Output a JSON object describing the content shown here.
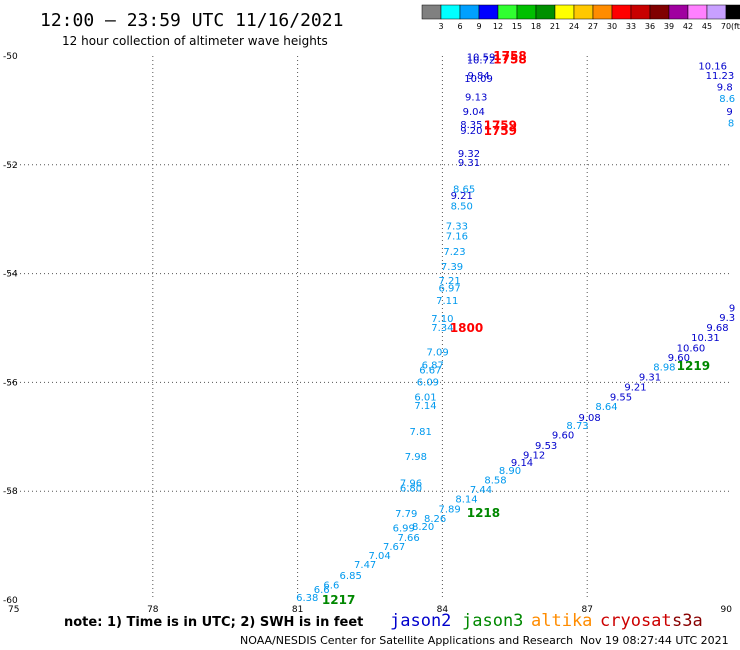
{
  "header": {
    "title": "12:00 – 23:59 UTC 11/16/2021",
    "subtitle": "12 hour collection of altimeter wave heights"
  },
  "color_scale": {
    "labels": [
      "3",
      "6",
      "9",
      "12",
      "15",
      "18",
      "21",
      "24",
      "27",
      "30",
      "33",
      "36",
      "39",
      "42",
      "45",
      "70"
    ],
    "unit": "(ft)",
    "colors": [
      "#808080",
      "#00ffff",
      "#00a0ff",
      "#0000ff",
      "#30ff30",
      "#00c000",
      "#009000",
      "#ffff00",
      "#ffc800",
      "#ff8c00",
      "#ff0000",
      "#c80000",
      "#800000",
      "#a000a0",
      "#ff80ff",
      "#c8a0ff",
      "#000000"
    ]
  },
  "axes": {
    "lon_ticks": [
      "75",
      "78",
      "81",
      "84",
      "87",
      "90"
    ],
    "lat_ticks": [
      "-50",
      "-52",
      "-54",
      "-56",
      "-58",
      "-60"
    ]
  },
  "chart_data": {
    "type": "map",
    "x_range": [
      75,
      90
    ],
    "y_range": [
      -60,
      -50
    ],
    "wave_heights": [
      {
        "lon": 84.8,
        "lat": -50.03,
        "v": "10.59",
        "c": "#0000cc"
      },
      {
        "lon": 84.8,
        "lat": -50.08,
        "v": "10.72",
        "c": "#0000cc"
      },
      {
        "lon": 84.75,
        "lat": -50.37,
        "v": "9.84",
        "c": "#0000cc"
      },
      {
        "lon": 84.75,
        "lat": -50.42,
        "v": "10.09",
        "c": "#0000cc"
      },
      {
        "lon": 84.7,
        "lat": -50.76,
        "v": "9.13",
        "c": "#0000cc"
      },
      {
        "lon": 84.65,
        "lat": -51.03,
        "v": "9.04",
        "c": "#0000cc"
      },
      {
        "lon": 84.6,
        "lat": -51.27,
        "v": "8.35",
        "c": "#0000cc"
      },
      {
        "lon": 84.6,
        "lat": -51.38,
        "v": "9.20",
        "c": "#0000cc"
      },
      {
        "lon": 84.55,
        "lat": -51.8,
        "v": "9.32",
        "c": "#0000cc"
      },
      {
        "lon": 84.55,
        "lat": -51.97,
        "v": "9.31",
        "c": "#0000cc"
      },
      {
        "lon": 84.45,
        "lat": -52.45,
        "v": "8.65",
        "c": "#0099ee"
      },
      {
        "lon": 84.4,
        "lat": -52.57,
        "v": "9.21",
        "c": "#0000cc"
      },
      {
        "lon": 84.4,
        "lat": -52.77,
        "v": "8.50",
        "c": "#0099ee"
      },
      {
        "lon": 84.3,
        "lat": -53.13,
        "v": "7.33",
        "c": "#0099ee"
      },
      {
        "lon": 84.3,
        "lat": -53.32,
        "v": "7.16",
        "c": "#0099ee"
      },
      {
        "lon": 84.25,
        "lat": -53.6,
        "v": "7.23",
        "c": "#0099ee"
      },
      {
        "lon": 84.2,
        "lat": -53.88,
        "v": "7.39",
        "c": "#0099ee"
      },
      {
        "lon": 84.15,
        "lat": -54.14,
        "v": "7.21",
        "c": "#0099ee"
      },
      {
        "lon": 84.15,
        "lat": -54.27,
        "v": "6.97",
        "c": "#0099ee"
      },
      {
        "lon": 84.1,
        "lat": -54.5,
        "v": "7.11",
        "c": "#0099ee"
      },
      {
        "lon": 84.0,
        "lat": -54.83,
        "v": "7.10",
        "c": "#0099ee"
      },
      {
        "lon": 84.0,
        "lat": -55.0,
        "v": "7.34",
        "c": "#0099ee"
      },
      {
        "lon": 83.9,
        "lat": -55.45,
        "v": "7.09",
        "c": "#0099ee"
      },
      {
        "lon": 83.8,
        "lat": -55.69,
        "v": "6.87",
        "c": "#0099ee"
      },
      {
        "lon": 83.75,
        "lat": -55.78,
        "v": "6.67",
        "c": "#0099ee"
      },
      {
        "lon": 83.7,
        "lat": -56.0,
        "v": "6.09",
        "c": "#0099ee"
      },
      {
        "lon": 83.65,
        "lat": -56.28,
        "v": "6.01",
        "c": "#0099ee"
      },
      {
        "lon": 83.65,
        "lat": -56.43,
        "v": "7.14",
        "c": "#0099ee"
      },
      {
        "lon": 83.55,
        "lat": -56.91,
        "v": "7.81",
        "c": "#0099ee"
      },
      {
        "lon": 83.45,
        "lat": -57.37,
        "v": "7.98",
        "c": "#0099ee"
      },
      {
        "lon": 83.35,
        "lat": -57.86,
        "v": "7.96",
        "c": "#0099ee"
      },
      {
        "lon": 83.35,
        "lat": -57.95,
        "v": "6.80",
        "c": "#0099ee"
      },
      {
        "lon": 83.25,
        "lat": -58.42,
        "v": "7.79",
        "c": "#0099ee"
      },
      {
        "lon": 83.2,
        "lat": -58.69,
        "v": "6.99",
        "c": "#0099ee"
      },
      {
        "lon": 81.2,
        "lat": -59.96,
        "v": "6.38",
        "c": "#0099ee"
      },
      {
        "lon": 81.5,
        "lat": -59.82,
        "v": "6.6",
        "c": "#0099ee"
      },
      {
        "lon": 81.7,
        "lat": -59.73,
        "v": "6.6",
        "c": "#0099ee"
      },
      {
        "lon": 82.1,
        "lat": -59.56,
        "v": "6.85",
        "c": "#0099ee"
      },
      {
        "lon": 82.4,
        "lat": -59.36,
        "v": "7.47",
        "c": "#0099ee"
      },
      {
        "lon": 82.7,
        "lat": -59.19,
        "v": "7.04",
        "c": "#0099ee"
      },
      {
        "lon": 83.0,
        "lat": -59.03,
        "v": "7.67",
        "c": "#0099ee"
      },
      {
        "lon": 83.3,
        "lat": -58.86,
        "v": "7.66",
        "c": "#0099ee"
      },
      {
        "lon": 83.6,
        "lat": -58.66,
        "v": "8.20",
        "c": "#0099ee"
      },
      {
        "lon": 83.85,
        "lat": -58.51,
        "v": "8.26",
        "c": "#0099ee"
      },
      {
        "lon": 84.15,
        "lat": -58.34,
        "v": "7.89",
        "c": "#0099ee"
      },
      {
        "lon": 84.5,
        "lat": -58.15,
        "v": "8.14",
        "c": "#0099ee"
      },
      {
        "lon": 84.8,
        "lat": -57.98,
        "v": "7.44",
        "c": "#0099ee"
      },
      {
        "lon": 85.1,
        "lat": -57.8,
        "v": "8.58",
        "c": "#0099ee"
      },
      {
        "lon": 85.4,
        "lat": -57.63,
        "v": "8.90",
        "c": "#0099ee"
      },
      {
        "lon": 85.65,
        "lat": -57.48,
        "v": "9.14",
        "c": "#0000cc"
      },
      {
        "lon": 85.9,
        "lat": -57.34,
        "v": "9.12",
        "c": "#0000cc"
      },
      {
        "lon": 86.15,
        "lat": -57.17,
        "v": "9.53",
        "c": "#0000cc"
      },
      {
        "lon": 86.5,
        "lat": -56.98,
        "v": "9.60",
        "c": "#0000cc"
      },
      {
        "lon": 86.8,
        "lat": -56.8,
        "v": "8.73",
        "c": "#0099ee"
      },
      {
        "lon": 87.05,
        "lat": -56.65,
        "v": "9.08",
        "c": "#0000cc"
      },
      {
        "lon": 87.4,
        "lat": -56.45,
        "v": "8.64",
        "c": "#0099ee"
      },
      {
        "lon": 87.7,
        "lat": -56.28,
        "v": "9.55",
        "c": "#0000cc"
      },
      {
        "lon": 88.0,
        "lat": -56.09,
        "v": "9.21",
        "c": "#0000cc"
      },
      {
        "lon": 88.3,
        "lat": -55.91,
        "v": "9.31",
        "c": "#0000cc"
      },
      {
        "lon": 88.6,
        "lat": -55.73,
        "v": "8.98",
        "c": "#0099ee"
      },
      {
        "lon": 88.9,
        "lat": -55.55,
        "v": "9.60",
        "c": "#0000cc"
      },
      {
        "lon": 89.15,
        "lat": -55.38,
        "v": "10.60",
        "c": "#0000cc"
      },
      {
        "lon": 89.45,
        "lat": -55.18,
        "v": "10.31",
        "c": "#0000cc"
      },
      {
        "lon": 89.7,
        "lat": -55.0,
        "v": "9.68",
        "c": "#0000cc"
      },
      {
        "lon": 89.9,
        "lat": -54.82,
        "v": "9.3",
        "c": "#0000cc"
      },
      {
        "lon": 90.0,
        "lat": -54.64,
        "v": "9",
        "c": "#0000cc"
      },
      {
        "lon": 89.6,
        "lat": -50.19,
        "v": "10.16",
        "c": "#0000cc"
      },
      {
        "lon": 89.75,
        "lat": -50.37,
        "v": "11.23",
        "c": "#0000cc"
      },
      {
        "lon": 89.85,
        "lat": -50.58,
        "v": "9.8",
        "c": "#0000cc"
      },
      {
        "lon": 89.9,
        "lat": -50.79,
        "v": "8.6",
        "c": "#0099ee"
      },
      {
        "lon": 89.95,
        "lat": -51.03,
        "v": "9",
        "c": "#0000cc"
      },
      {
        "lon": 89.98,
        "lat": -51.24,
        "v": "8",
        "c": "#0099ee"
      }
    ],
    "time_labels": [
      {
        "lon": 85.4,
        "lat": -50.0,
        "v": "1758",
        "c": "#ff0000"
      },
      {
        "lon": 85.4,
        "lat": -50.06,
        "v": "1758",
        "c": "#ff0000"
      },
      {
        "lon": 85.2,
        "lat": -51.28,
        "v": "1759",
        "c": "#ff0000"
      },
      {
        "lon": 85.2,
        "lat": -51.38,
        "v": "1759",
        "c": "#ff0000"
      },
      {
        "lon": 84.5,
        "lat": -55.0,
        "v": "1800",
        "c": "#ff0000"
      },
      {
        "lon": 84.85,
        "lat": -58.4,
        "v": "1218",
        "c": "#008800"
      },
      {
        "lon": 81.85,
        "lat": -60.0,
        "v": "1217",
        "c": "#008800"
      },
      {
        "lon": 89.2,
        "lat": -55.7,
        "v": "1219",
        "c": "#008800"
      }
    ]
  },
  "footer": {
    "note": "note: 1) Time is in UTC; 2) SWH is in feet",
    "satellites": [
      {
        "name": "jason2",
        "color": "#0000cc"
      },
      {
        "name": "jason3",
        "color": "#008800"
      },
      {
        "name": "altika",
        "color": "#ff8c00"
      },
      {
        "name": "cryosat",
        "color": "#cc0000"
      },
      {
        "name": "s3a",
        "color": "#880000"
      }
    ],
    "credit": "NOAA/NESDIS Center for Satellite Applications and Research",
    "timestamp": "Nov 19 08:27:44 UTC 2021"
  }
}
